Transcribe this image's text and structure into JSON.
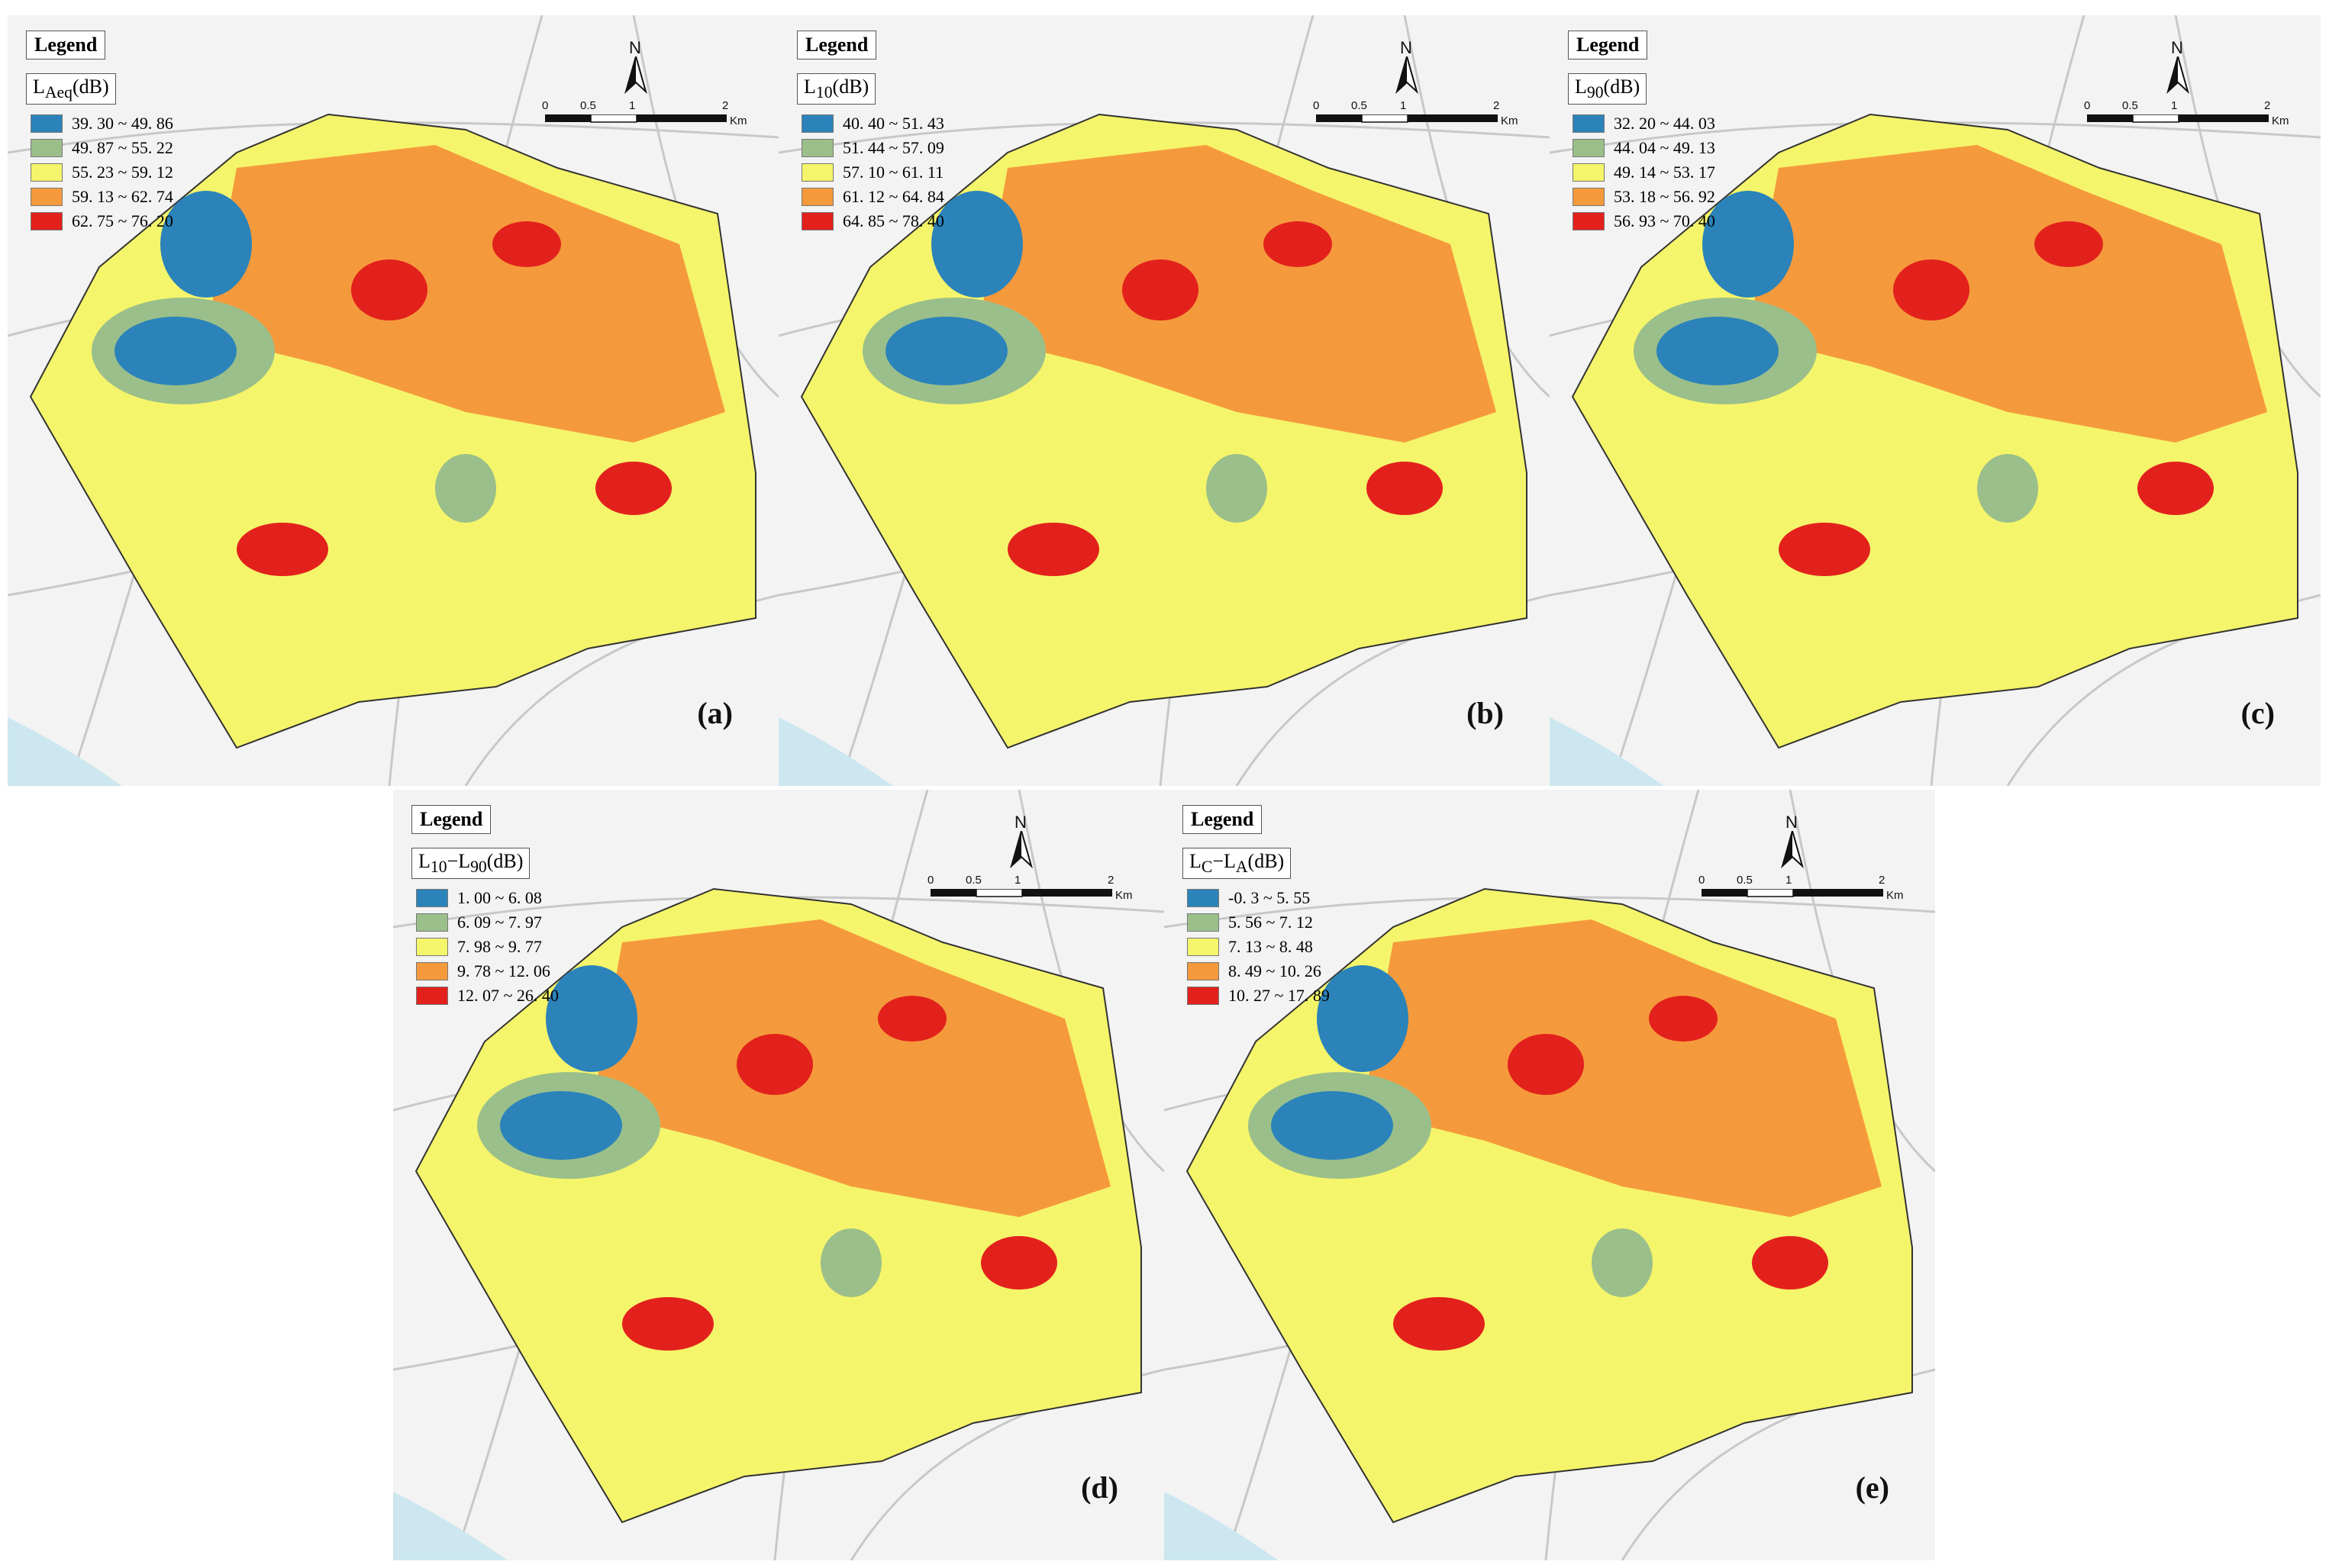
{
  "legend_heading": "Legend",
  "scale": {
    "ticks": [
      "0",
      "0.5",
      "1",
      "2"
    ],
    "unit": "Km",
    "north": "N"
  },
  "panels": [
    {
      "id": "a",
      "label": "(a)",
      "metric": {
        "main": "L",
        "sub1": "Aeq",
        "mid": "",
        "sub2": "",
        "unit": "(dB)"
      },
      "classes": [
        {
          "range": "39. 30 ~ 49. 86",
          "color": "#2b83ba"
        },
        {
          "range": "49. 87 ~ 55. 22",
          "color": "#9bbf8a"
        },
        {
          "range": "55. 23 ~ 59. 12",
          "color": "#f5f56b"
        },
        {
          "range": "59. 13 ~ 62. 74",
          "color": "#f59a3c"
        },
        {
          "range": "62. 75 ~ 76. 20",
          "color": "#e3211c"
        }
      ]
    },
    {
      "id": "b",
      "label": "(b)",
      "metric": {
        "main": "L",
        "sub1": "10",
        "mid": "",
        "sub2": "",
        "unit": "(dB)"
      },
      "classes": [
        {
          "range": "40. 40 ~ 51. 43",
          "color": "#2b83ba"
        },
        {
          "range": "51. 44 ~ 57. 09",
          "color": "#9bbf8a"
        },
        {
          "range": "57. 10 ~ 61. 11",
          "color": "#f5f56b"
        },
        {
          "range": "61. 12 ~ 64. 84",
          "color": "#f59a3c"
        },
        {
          "range": "64. 85 ~ 78. 40",
          "color": "#e3211c"
        }
      ]
    },
    {
      "id": "c",
      "label": "(c)",
      "metric": {
        "main": "L",
        "sub1": "90",
        "mid": "",
        "sub2": "",
        "unit": "(dB)"
      },
      "classes": [
        {
          "range": "32. 20 ~ 44. 03",
          "color": "#2b83ba"
        },
        {
          "range": "44. 04 ~ 49. 13",
          "color": "#9bbf8a"
        },
        {
          "range": "49. 14 ~ 53. 17",
          "color": "#f5f56b"
        },
        {
          "range": "53. 18 ~ 56. 92",
          "color": "#f59a3c"
        },
        {
          "range": "56. 93 ~ 70. 40",
          "color": "#e3211c"
        }
      ]
    },
    {
      "id": "d",
      "label": "(d)",
      "metric": {
        "main": "L",
        "sub1": "10",
        "mid": "−L",
        "sub2": "90",
        "unit": "(dB)"
      },
      "classes": [
        {
          "range": "1. 00 ~ 6. 08",
          "color": "#2b83ba"
        },
        {
          "range": "6. 09 ~ 7. 97",
          "color": "#9bbf8a"
        },
        {
          "range": "7. 98 ~ 9. 77",
          "color": "#f5f56b"
        },
        {
          "range": "9. 78 ~ 12. 06",
          "color": "#f59a3c"
        },
        {
          "range": "12. 07 ~ 26. 40",
          "color": "#e3211c"
        }
      ]
    },
    {
      "id": "e",
      "label": "(e)",
      "metric": {
        "main": "L",
        "sub1": "C",
        "mid": "−L",
        "sub2": "A",
        "unit": "(dB)"
      },
      "classes": [
        {
          "range": "-0. 3 ~ 5. 55",
          "color": "#2b83ba"
        },
        {
          "range": "5. 56 ~ 7. 12",
          "color": "#9bbf8a"
        },
        {
          "range": "7. 13 ~ 8. 48",
          "color": "#f5f56b"
        },
        {
          "range": "8. 49 ~ 10. 26",
          "color": "#f59a3c"
        },
        {
          "range": "10. 27 ~ 17. 89",
          "color": "#e3211c"
        }
      ]
    }
  ]
}
